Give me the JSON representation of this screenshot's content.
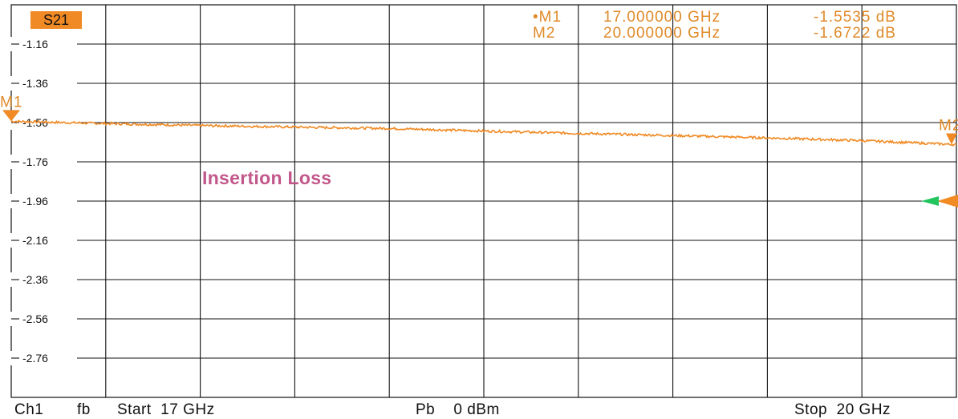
{
  "trace": {
    "name": "S21",
    "color": "#f08a24",
    "badge_color": "#f08a24"
  },
  "markers_readout": [
    {
      "label": "•M1",
      "freq": "17.000000 GHz",
      "value": "-1.5535 dB"
    },
    {
      "label": "M2",
      "freq": "20.000000 GHz",
      "value": "-1.6722 dB"
    }
  ],
  "annotation": "Insertion Loss",
  "footer": {
    "channel": "Ch1",
    "mode": "fb",
    "start": "Start  17 GHz",
    "power": "Pb    0 dBm",
    "stop": "Stop  20 GHz"
  },
  "chart_data": {
    "type": "line",
    "title": "",
    "xlabel": "",
    "ylabel": "",
    "xlim": [
      17,
      20
    ],
    "ylim": [
      -2.96,
      -0.96
    ],
    "x_unit": "GHz",
    "y_unit": "dB",
    "y_ticks": [
      -1.16,
      -1.36,
      -1.56,
      -1.76,
      -1.96,
      -2.16,
      -2.36,
      -2.56,
      -2.76
    ],
    "y_tick_labels": [
      "-1.16",
      "-1.36",
      "-1.56",
      "-1.76",
      "-1.96",
      "-2.16",
      "-2.36",
      "-2.56",
      "-2.76"
    ],
    "grid": true,
    "series": [
      {
        "name": "S21",
        "x": [
          17.0,
          17.3,
          17.6,
          17.9,
          18.2,
          18.5,
          18.8,
          19.1,
          19.4,
          19.7,
          20.0
        ],
        "y": [
          -1.5535,
          -1.565,
          -1.575,
          -1.583,
          -1.59,
          -1.603,
          -1.615,
          -1.626,
          -1.638,
          -1.652,
          -1.6722
        ]
      }
    ],
    "markers": [
      {
        "name": "M1",
        "x": 17.0,
        "y": -1.5535
      },
      {
        "name": "M2",
        "x": 20.0,
        "y": -1.6722
      }
    ],
    "reference_level": -1.96
  }
}
